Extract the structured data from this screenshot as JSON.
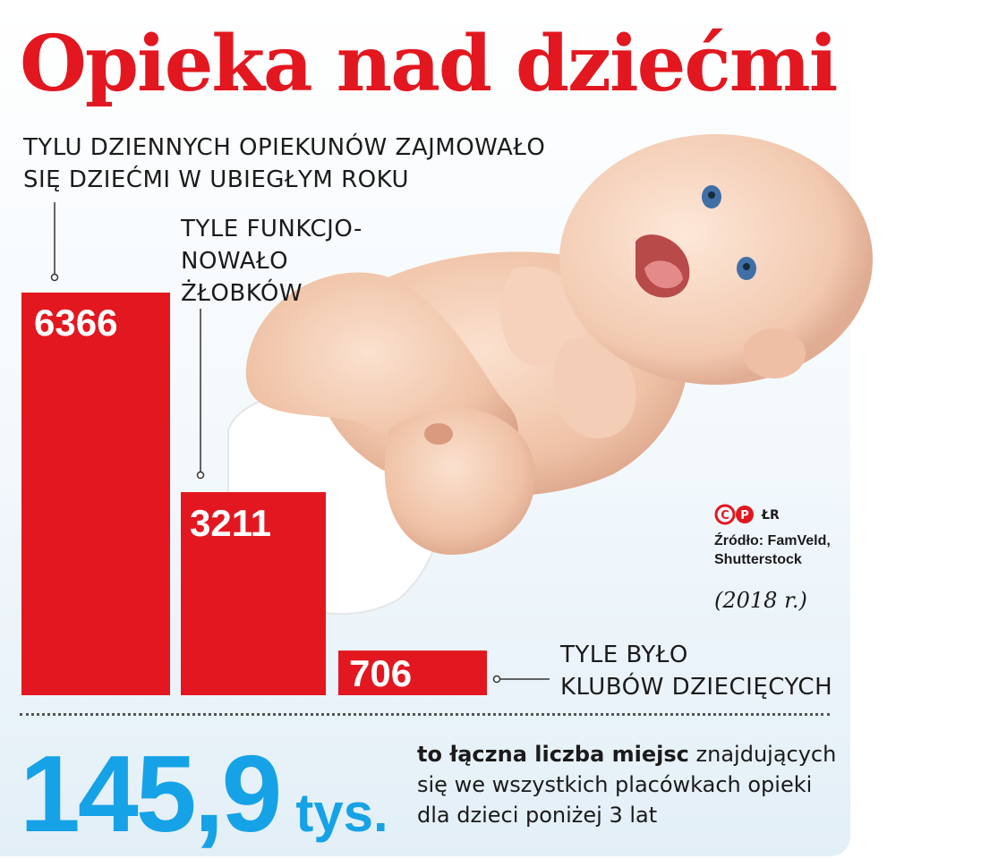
{
  "title": "Opieka nad dziećmi",
  "chart_data": {
    "type": "bar",
    "categories": [
      "TYLU DZIENNYCH OPIEKUNÓW ZAJMOWAŁO\nSIĘ DZIEĆMI W UBIEGŁYM ROKU",
      "TYLE FUNKCJO-\nNOWAŁO\nŻŁOBKÓW",
      "TYLE BYŁO\nKLUBÓW DZIECIĘCYCH"
    ],
    "values": [
      6366,
      3211,
      706
    ],
    "value_labels": [
      "6366",
      "3211",
      "706"
    ],
    "ylim": [
      0,
      6366
    ],
    "grid": false,
    "bar_color": "#e3171f"
  },
  "total": {
    "number": "145,9",
    "unit": "tys.",
    "description_bold": "to łączna liczba miejsc",
    "description_rest": " znajdujących się we wszystkich placówkach opieki dla dzieci poniżej 3 lat"
  },
  "credits": {
    "logo": "cp-logo",
    "initials": "ŁR",
    "source": "Źródło: FamVeld,\nShutterstock",
    "year": "(2018 r.)"
  },
  "colors": {
    "title": "#e3171f",
    "bars": "#e3171f",
    "big_number": "#16a2e6"
  }
}
